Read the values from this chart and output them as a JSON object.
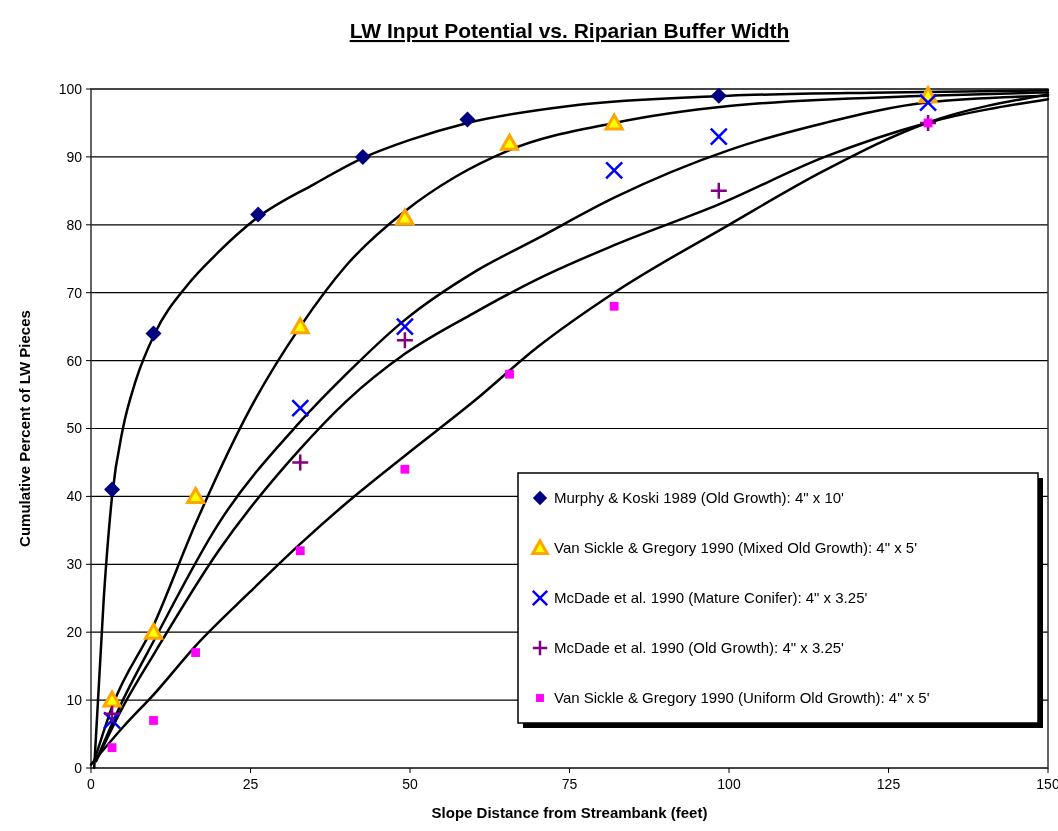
{
  "chart_data": {
    "type": "scatter",
    "title": "LW Input Potential vs. Riparian Buffer Width",
    "xlabel": "Slope Distance from Streambank (feet)",
    "ylabel": "Cumulative Percent of LW Pieces",
    "xlim": [
      0,
      150
    ],
    "xticks": [
      0,
      25,
      50,
      75,
      100,
      125,
      150
    ],
    "ylim": [
      0,
      100
    ],
    "yticks": [
      0,
      10,
      20,
      30,
      40,
      50,
      60,
      70,
      80,
      90,
      100
    ],
    "grid": "y",
    "legend": "bottom right",
    "series": [
      {
        "type": "line",
        "color": "#000000",
        "marker": "none",
        "line_style": "solid",
        "x": [
          0.5,
          2,
          3.3,
          5,
          7,
          10,
          15,
          20,
          26,
          35,
          43,
          50,
          59,
          75,
          100,
          125,
          150
        ],
        "values": [
          0,
          25,
          40,
          50,
          57,
          64,
          71,
          76,
          81,
          86,
          90,
          92.5,
          95,
          97.5,
          99,
          99.5,
          99.8
        ]
      },
      {
        "type": "line",
        "color": "#000000",
        "marker": "none",
        "line_style": "solid",
        "x": [
          0.5,
          3.3,
          9.8,
          16.4,
          25,
          32.8,
          40,
          49.2,
          57,
          65.6,
          82,
          100,
          131,
          150
        ],
        "values": [
          1,
          9,
          21,
          36,
          53,
          65,
          74,
          82,
          87,
          91,
          95,
          97.5,
          99,
          99.5
        ]
      },
      {
        "type": "line",
        "color": "#000000",
        "marker": "none",
        "line_style": "solid",
        "x": [
          1,
          5,
          10,
          20,
          32.8,
          40,
          49.2,
          60,
          70,
          82,
          100,
          115,
          131,
          150
        ],
        "values": [
          1.5,
          10,
          19,
          36,
          51,
          58,
          66,
          73,
          78,
          84,
          91,
          95,
          98,
          99
        ]
      },
      {
        "type": "line",
        "color": "#000000",
        "marker": "none",
        "line_style": "solid",
        "x": [
          0.8,
          5,
          10,
          20,
          32.8,
          40,
          49.2,
          60,
          70,
          82,
          98.4,
          115,
          131,
          150
        ],
        "values": [
          1,
          9,
          17,
          32,
          47,
          54,
          61,
          67,
          72,
          77,
          83,
          90,
          95,
          98.5
        ]
      },
      {
        "type": "line",
        "color": "#000000",
        "marker": "none",
        "line_style": "solid",
        "x": [
          0,
          5,
          10,
          16.4,
          25,
          32.8,
          40,
          49.2,
          60,
          70,
          82,
          100,
          115,
          131,
          150
        ],
        "values": [
          0.5,
          6,
          11,
          18,
          26,
          33,
          39,
          46,
          54,
          62,
          70,
          80,
          88,
          95,
          99.2
        ]
      },
      {
        "name": "Murphy & Koski 1989 (Old Growth): 4\" x 10'",
        "color": "#000080",
        "marker": "diamond",
        "x": [
          3.3,
          9.8,
          26.2,
          42.6,
          59,
          98.4
        ],
        "values": [
          41,
          64,
          81.5,
          90,
          95.5,
          99
        ]
      },
      {
        "name": "Van Sickle & Gregory 1990 (Mixed Old Growth): 4\" x 5'",
        "color": "#ffa500",
        "marker": "triangle",
        "x": [
          3.3,
          9.8,
          16.4,
          32.8,
          49.2,
          65.6,
          82,
          131.2
        ],
        "values": [
          10,
          20,
          40,
          65,
          81,
          92,
          95,
          99
        ]
      },
      {
        "name": "McDade et al. 1990 (Mature Conifer): 4\" x 3.25'",
        "color": "#0000ff",
        "marker": "cross",
        "x": [
          3.3,
          32.8,
          49.2,
          82,
          98.4,
          131.2
        ],
        "values": [
          7,
          53,
          65,
          88,
          93,
          98
        ]
      },
      {
        "name": "McDade et al. 1990 (Old Growth): 4\" x 3.25'",
        "color": "#800080",
        "marker": "plus",
        "x": [
          3.3,
          32.8,
          49.2,
          98.4,
          131.2
        ],
        "values": [
          8,
          45,
          63,
          85,
          95
        ]
      },
      {
        "name": "Van Sickle & Gregory 1990 (Uniform Old Growth): 4\" x 5'",
        "color": "#ff00ff",
        "marker": "square",
        "x": [
          3.3,
          9.8,
          16.4,
          32.8,
          49.2,
          65.6,
          82,
          131.2
        ],
        "values": [
          3,
          7,
          17,
          32,
          44,
          58,
          68,
          95
        ]
      }
    ]
  }
}
